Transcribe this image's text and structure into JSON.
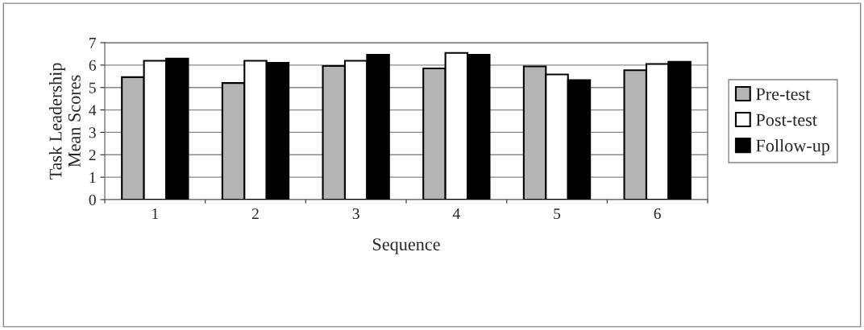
{
  "chart_data": {
    "type": "bar",
    "xlabel": "Sequence",
    "ylabel": "Task Leadership\nMean Scores",
    "categories": [
      "1",
      "2",
      "3",
      "4",
      "5",
      "6"
    ],
    "series": [
      {
        "name": "Pre-test",
        "color": "#b4b4b4",
        "values": [
          5.46,
          5.2,
          5.96,
          5.85,
          5.94,
          5.77
        ]
      },
      {
        "name": "Post-test",
        "color": "#ffffff",
        "values": [
          6.19,
          6.19,
          6.19,
          6.54,
          5.58,
          6.05
        ]
      },
      {
        "name": "Follow-up",
        "color": "#000000",
        "values": [
          6.29,
          6.1,
          6.46,
          6.46,
          5.33,
          6.15
        ]
      }
    ],
    "ylim": [
      0,
      7
    ],
    "yticks": [
      0,
      1,
      2,
      3,
      4,
      5,
      6,
      7
    ],
    "grid": "y",
    "legend": "right"
  }
}
